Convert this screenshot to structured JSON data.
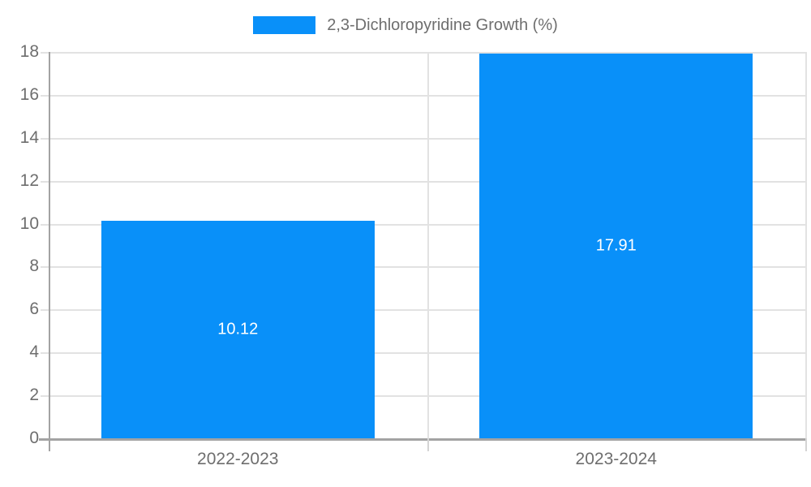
{
  "legend": {
    "label": "2,3-Dichloropyridine Growth (%)"
  },
  "chart_data": {
    "type": "bar",
    "categories": [
      "2022-2023",
      "2023-2024"
    ],
    "values": [
      10.12,
      17.91
    ],
    "data_labels": [
      "10.12",
      "17.91"
    ],
    "series_name": "2,3-Dichloropyridine Growth (%)",
    "title": "",
    "xlabel": "",
    "ylabel": "",
    "ylim": [
      0,
      18
    ],
    "ytick_step": 2,
    "yticks": [
      0,
      2,
      4,
      6,
      8,
      10,
      12,
      14,
      16,
      18
    ],
    "grid": true,
    "legend_position": "top",
    "colors": {
      "bar": "#0990f9",
      "data_label": "#ffffff",
      "tick_label": "#6e6e6e",
      "legend_text": "#6e6e6e",
      "axis_line": "#a3a3a3",
      "gridline": "#e2e2e2",
      "boundary_tick": "#d4d4d4"
    }
  }
}
